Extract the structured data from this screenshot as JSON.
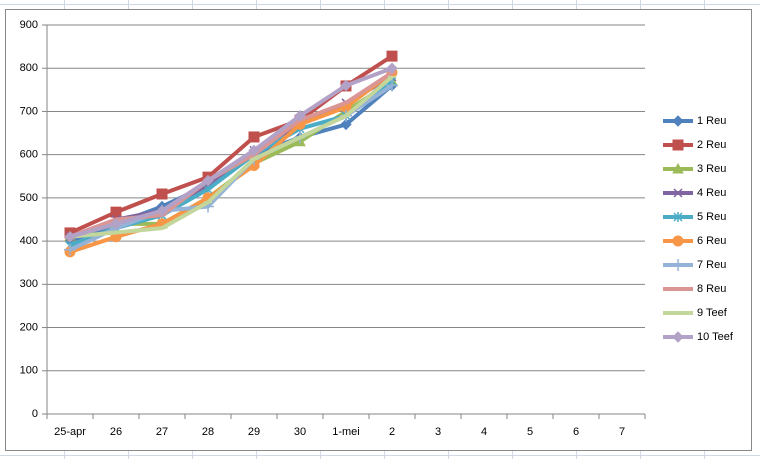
{
  "chart_data": {
    "type": "line",
    "categories": [
      "25-apr",
      "26",
      "27",
      "28",
      "29",
      "30",
      "1-mei",
      "2",
      "3",
      "4",
      "5",
      "6",
      "7"
    ],
    "ylim": [
      0,
      900
    ],
    "yticks": [
      0,
      100,
      200,
      300,
      400,
      500,
      600,
      700,
      800,
      900
    ],
    "grid": true,
    "legend": "right",
    "series": [
      {
        "name": "1 Reu",
        "color": "#4f81bd",
        "marker": "diamond",
        "values": [
          400,
          440,
          480,
          530,
          600,
          640,
          670,
          760,
          null,
          null,
          null,
          null,
          null
        ]
      },
      {
        "name": "2 Reu",
        "color": "#c0504d",
        "marker": "square",
        "values": [
          419,
          467,
          509,
          548,
          641,
          680,
          759,
          828,
          null,
          null,
          null,
          null,
          null
        ]
      },
      {
        "name": "3 Reu",
        "color": "#9bbb59",
        "marker": "triangle",
        "values": [
          410,
          440,
          440,
          500,
          580,
          630,
          700,
          770,
          null,
          null,
          null,
          null,
          null
        ]
      },
      {
        "name": "4 Reu",
        "color": "#8064a2",
        "marker": "x",
        "values": [
          410,
          450,
          470,
          530,
          610,
          670,
          720,
          780,
          null,
          null,
          null,
          null,
          null
        ]
      },
      {
        "name": "5 Reu",
        "color": "#4bacc6",
        "marker": "star",
        "values": [
          390,
          430,
          460,
          520,
          600,
          660,
          690,
          770,
          null,
          null,
          null,
          null,
          null
        ]
      },
      {
        "name": "6 Reu",
        "color": "#f79646",
        "marker": "circle",
        "values": [
          375,
          410,
          440,
          500,
          575,
          670,
          710,
          790,
          null,
          null,
          null,
          null,
          null
        ]
      },
      {
        "name": "7 Reu",
        "color": "#95b3d7",
        "marker": "plus",
        "values": [
          380,
          430,
          470,
          480,
          590,
          640,
          690,
          760,
          null,
          null,
          null,
          null,
          null
        ]
      },
      {
        "name": "8 Reu",
        "color": "#d99694",
        "marker": "dash",
        "values": [
          410,
          450,
          460,
          540,
          600,
          680,
          720,
          790,
          null,
          null,
          null,
          null,
          null
        ]
      },
      {
        "name": "9 Teef",
        "color": "#c3d69b",
        "marker": "dash",
        "values": [
          410,
          420,
          430,
          490,
          590,
          640,
          690,
          780,
          null,
          null,
          null,
          null,
          null
        ]
      },
      {
        "name": "10 Teef",
        "color": "#b3a2c7",
        "marker": "diamond",
        "values": [
          410,
          440,
          470,
          540,
          610,
          690,
          760,
          800,
          null,
          null,
          null,
          null,
          null
        ]
      }
    ]
  }
}
